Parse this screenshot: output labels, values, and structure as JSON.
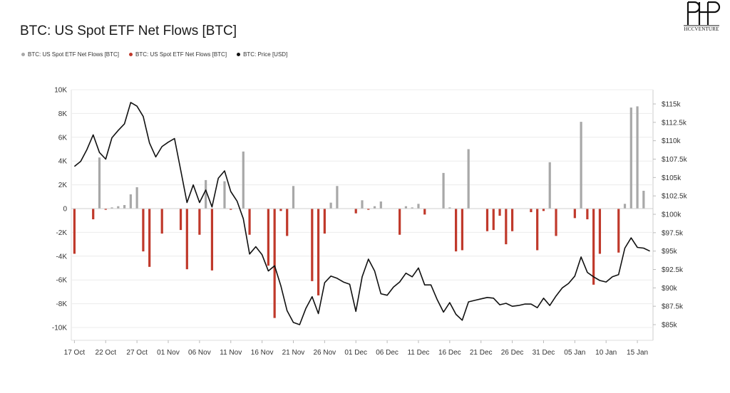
{
  "title": "BTC: US Spot ETF Net Flows [BTC]",
  "logo_text": "HCCVENTURE",
  "legend": [
    {
      "label": "BTC: US Spot ETF Net Flows [BTC]",
      "color": "#a8a8a8"
    },
    {
      "label": "BTC: US Spot ETF Net Flows [BTC]",
      "color": "#c0392b"
    },
    {
      "label": "BTC: Price [USD]",
      "color": "#111111"
    }
  ],
  "colors": {
    "positive": "#a8a8a8",
    "negative": "#c0392b",
    "price": "#111111",
    "grid": "#ececec"
  },
  "chart_data": {
    "type": "bar",
    "title": "BTC: US Spot ETF Net Flows [BTC]",
    "x_start": "17 Oct",
    "x_ticks": [
      "17 Oct",
      "22 Oct",
      "27 Oct",
      "01 Nov",
      "06 Nov",
      "11 Nov",
      "16 Nov",
      "21 Nov",
      "26 Nov",
      "01 Dec",
      "06 Dec",
      "11 Dec",
      "16 Dec",
      "21 Dec",
      "26 Dec",
      "31 Dec",
      "05 Jan",
      "10 Jan",
      "15 Jan"
    ],
    "y_left": {
      "ticks": [
        "10K",
        "8K",
        "6K",
        "4K",
        "2K",
        "0",
        "-2K",
        "-4K",
        "-6K",
        "-8K",
        "-10K"
      ],
      "range": [
        -10000,
        10000
      ]
    },
    "y_right": {
      "ticks": [
        "$115k",
        "$112.5k",
        "$110k",
        "$107.5k",
        "$105k",
        "$102.5k",
        "$100k",
        "$97.5k",
        "$95k",
        "$92.5k",
        "$90k",
        "$87.5k",
        "$85k"
      ],
      "range": [
        84000,
        118000
      ]
    },
    "grid": true,
    "legend_position": "top-left",
    "series": [
      {
        "name": "BTC: US Spot ETF Net Flows [BTC]",
        "kind": "bar",
        "x": [
          0,
          3,
          4,
          5,
          6,
          7,
          8,
          9,
          10,
          11,
          12,
          14,
          17,
          18,
          20,
          21,
          22,
          24,
          25,
          27,
          28,
          31,
          32,
          33,
          34,
          35,
          38,
          39,
          40,
          41,
          42,
          45,
          46,
          47,
          48,
          49,
          52,
          53,
          54,
          55,
          56,
          59,
          60,
          61,
          62,
          63,
          66,
          67,
          68,
          69,
          70,
          73,
          74,
          75,
          76,
          77,
          80,
          81,
          82,
          83,
          84,
          87,
          88,
          89,
          90,
          91
        ],
        "values": [
          -3800,
          -900,
          4300,
          -100,
          100,
          200,
          300,
          1200,
          1800,
          -3600,
          -4900,
          -2100,
          -1800,
          -5100,
          -2200,
          2400,
          -5200,
          2300,
          -100,
          4800,
          -2200,
          -4800,
          -9200,
          -200,
          -2300,
          1900,
          -6100,
          -7300,
          -2100,
          500,
          1900,
          -400,
          700,
          -100,
          200,
          600,
          -2200,
          200,
          100,
          400,
          -500,
          3000,
          100,
          -3600,
          -3500,
          5000,
          -1900,
          -1800,
          -600,
          -3000,
          -1900,
          -300,
          -3500,
          -200,
          3900,
          -2300,
          -800,
          7300,
          -900,
          -6400,
          -3800,
          -3700,
          400,
          8500,
          8600,
          1500
        ]
      },
      {
        "name": "BTC: Price [USD]",
        "kind": "line",
        "x": [
          0,
          1,
          2,
          3,
          4,
          5,
          6,
          7,
          8,
          9,
          10,
          11,
          12,
          13,
          14,
          15,
          16,
          17,
          18,
          19,
          20,
          21,
          22,
          23,
          24,
          25,
          26,
          27,
          28,
          29,
          30,
          31,
          32,
          33,
          34,
          35,
          36,
          37,
          38,
          39,
          40,
          41,
          42,
          43,
          44,
          45,
          46,
          47,
          48,
          49,
          50,
          51,
          52,
          53,
          54,
          55,
          56,
          57,
          58,
          59,
          60,
          61,
          62,
          63,
          64,
          65,
          66,
          67,
          68,
          69,
          70,
          71,
          72,
          73,
          74,
          75,
          76,
          77,
          78,
          79,
          80,
          81,
          82,
          83,
          84,
          85,
          86,
          87,
          88,
          89,
          90,
          91,
          92
        ],
        "values": [
          106500,
          107200,
          108800,
          110800,
          108400,
          107500,
          110400,
          111400,
          112300,
          115200,
          114700,
          113300,
          109700,
          107800,
          109200,
          109800,
          110300,
          106000,
          101600,
          104000,
          101600,
          103300,
          101000,
          104900,
          105900,
          103100,
          101800,
          99400,
          94600,
          95600,
          94500,
          92300,
          93000,
          90300,
          86900,
          85300,
          85000,
          87200,
          88800,
          86500,
          90700,
          91600,
          91300,
          90800,
          90500,
          86800,
          91500,
          93900,
          92300,
          89200,
          89000,
          90100,
          90800,
          92000,
          91500,
          92700,
          90400,
          90400,
          88400,
          86700,
          88000,
          86400,
          85600,
          88100,
          88300,
          88500,
          88700,
          88600,
          87700,
          87900,
          87500,
          87600,
          87800,
          87800,
          87300,
          88600,
          87600,
          88900,
          90000,
          90600,
          91600,
          94200,
          92100,
          91500,
          91000,
          90800,
          91500,
          91800,
          95400,
          96800,
          95500,
          95400,
          95000
        ]
      }
    ]
  }
}
